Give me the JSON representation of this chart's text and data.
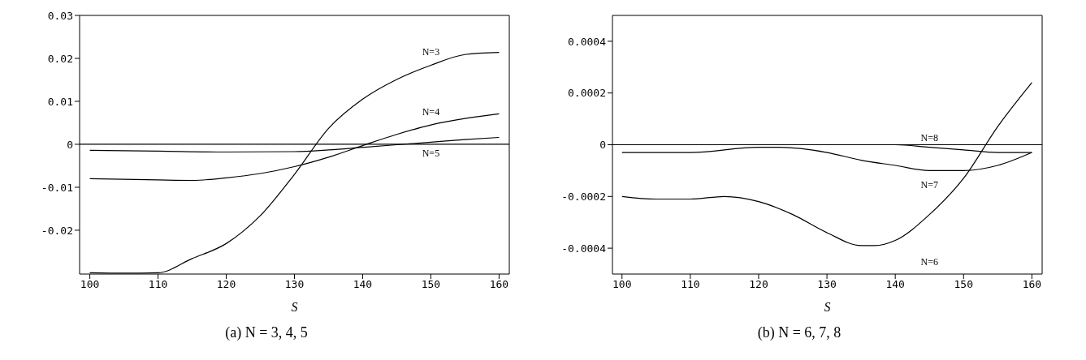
{
  "chart_data": [
    {
      "type": "line",
      "title": "(a) N = 3, 4, 5",
      "xlabel": "S",
      "xlim": [
        98.5,
        161.5
      ],
      "xticks": [
        100,
        110,
        120,
        130,
        140,
        150,
        160
      ],
      "ylim": [
        -0.0302,
        0.03
      ],
      "yticks": [
        -0.02,
        -0.01,
        0,
        0.01,
        0.02,
        0.03
      ],
      "legend": false,
      "marker": "none",
      "line_style": "solid",
      "ref_lines": [
        {
          "axis": "y",
          "value": 0,
          "color": "#000000"
        }
      ],
      "series": [
        {
          "name": "N=3",
          "color": "#000000",
          "x": [
            100,
            105,
            110,
            115,
            120,
            125,
            130,
            135,
            140,
            145,
            150,
            155,
            160
          ],
          "values": [
            -0.0299,
            -0.03,
            -0.0299,
            -0.0266,
            -0.0231,
            -0.0166,
            -0.007,
            0.0037,
            0.0105,
            0.0151,
            0.0184,
            0.0209,
            0.0214
          ]
        },
        {
          "name": "N=4",
          "color": "#000000",
          "x": [
            100,
            110,
            115,
            120,
            125,
            130,
            135,
            140,
            145,
            150,
            155,
            160
          ],
          "values": [
            -0.008,
            -0.0083,
            -0.0084,
            -0.0078,
            -0.0068,
            -0.0052,
            -0.003,
            -0.0003,
            0.0023,
            0.0045,
            0.006,
            0.0071
          ]
        },
        {
          "name": "N=5",
          "color": "#000000",
          "x": [
            100,
            110,
            120,
            130,
            135,
            140,
            145,
            150,
            155,
            160
          ],
          "values": [
            -0.0014,
            -0.0016,
            -0.0018,
            -0.0017,
            -0.0013,
            -0.0007,
            -0.0001,
            0.0005,
            0.0011,
            0.0016
          ]
        }
      ]
    },
    {
      "type": "line",
      "title": "(b) N = 6, 7, 8",
      "xlabel": "S",
      "xlim": [
        98.6,
        161.5
      ],
      "xticks": [
        100,
        110,
        120,
        130,
        140,
        150,
        160
      ],
      "ylim": [
        -0.0005,
        0.0005
      ],
      "yticks": [
        -0.0004,
        -0.0002,
        0,
        0.0002,
        0.0004
      ],
      "legend": false,
      "marker": "none",
      "line_style": "solid",
      "ref_lines": [
        {
          "axis": "y",
          "value": 0,
          "color": "#000000"
        }
      ],
      "series": [
        {
          "name": "N=6",
          "color": "#000000",
          "x": [
            100,
            105,
            110,
            115,
            120,
            125,
            130,
            135,
            137,
            140,
            145,
            150,
            155,
            160
          ],
          "values": [
            -0.0002,
            -0.00021,
            -0.00021,
            -0.0002,
            -0.00022,
            -0.00027,
            -0.00034,
            -0.00039,
            -0.00039,
            -0.00037,
            -0.00027,
            -0.00013,
            7e-05,
            0.00024
          ]
        },
        {
          "name": "N=7",
          "color": "#000000",
          "x": [
            100,
            110,
            120,
            123,
            130,
            135,
            140,
            145,
            150,
            155,
            160
          ],
          "values": [
            -3e-05,
            -3e-05,
            -1e-05,
            -1e-05,
            -3e-05,
            -6e-05,
            -8e-05,
            -0.0001,
            -0.0001,
            -8e-05,
            -3e-05
          ]
        },
        {
          "name": "N=8",
          "color": "#000000",
          "x": [
            100,
            120,
            130,
            140,
            145,
            150,
            155,
            160
          ],
          "values": [
            0,
            0,
            0,
            0,
            -1e-05,
            -2e-05,
            -3e-05,
            -3e-05
          ]
        }
      ]
    }
  ]
}
